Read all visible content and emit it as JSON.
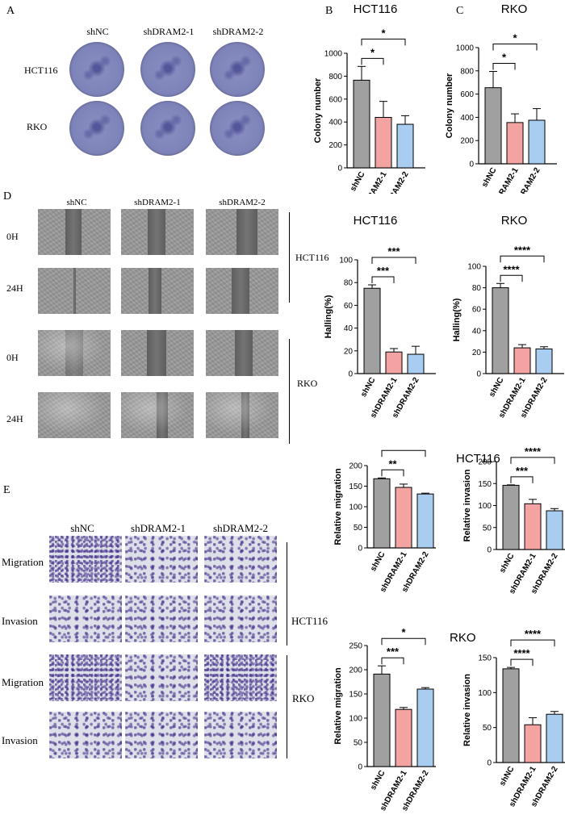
{
  "panels": {
    "A": "A",
    "B": "B",
    "C": "C",
    "D": "D",
    "E": "E"
  },
  "panel_a": {
    "columns": [
      "shNC",
      "shDRAM2-1",
      "shDRAM2-2"
    ],
    "rows": [
      "HCT116",
      "RKO"
    ]
  },
  "panel_d": {
    "columns": [
      "shNC",
      "shDRAM2-1",
      "shDRAM2-2"
    ],
    "rows": [
      "0H",
      "24H",
      "0H",
      "24H"
    ],
    "groups": [
      "HCT116",
      "RKO"
    ]
  },
  "panel_e": {
    "columns": [
      "shNC",
      "shDRAM2-1",
      "shDRAM2-2"
    ],
    "rows": [
      "Migration",
      "Invasion",
      "Migration",
      "Invasion"
    ],
    "groups": [
      "HCT116",
      "RKO"
    ]
  },
  "colors": {
    "shNC": "#a0a0a0",
    "shDRAM2-1": "#f4a3a3",
    "shDRAM2-2": "#a9cdf0"
  },
  "chart_data": [
    {
      "id": "B",
      "type": "bar",
      "title": "HCT116",
      "ylabel": "Colony number",
      "categories": [
        "shNC",
        "shDRAM2-1",
        "shDRAM2-2"
      ],
      "values": [
        765,
        440,
        380
      ],
      "errors": [
        120,
        140,
        75
      ],
      "ylim": [
        0,
        1000
      ],
      "ticks": [
        0,
        200,
        400,
        600,
        800,
        1000
      ],
      "sig": [
        {
          "from": 0,
          "to": 1,
          "label": "*"
        },
        {
          "from": 0,
          "to": 2,
          "label": "*"
        }
      ]
    },
    {
      "id": "C",
      "type": "bar",
      "title": "RKO",
      "ylabel": "Colony number",
      "categories": [
        "shNC",
        "shDRAM2-1",
        "shDRAM2-2"
      ],
      "values": [
        655,
        355,
        375
      ],
      "errors": [
        140,
        75,
        100
      ],
      "ylim": [
        0,
        1000
      ],
      "ticks": [
        0,
        200,
        400,
        600,
        800,
        1000
      ],
      "sig": [
        {
          "from": 0,
          "to": 1,
          "label": "*"
        },
        {
          "from": 0,
          "to": 2,
          "label": "*"
        }
      ]
    },
    {
      "id": "D1",
      "type": "bar",
      "title": "HCT116",
      "ylabel": "Halling(%)",
      "categories": [
        "shNC",
        "shDRAM2-1",
        "shDRAM2-2"
      ],
      "values": [
        75,
        19,
        17
      ],
      "errors": [
        3,
        3,
        7
      ],
      "ylim": [
        0,
        100
      ],
      "ticks": [
        0,
        20,
        40,
        60,
        80,
        100
      ],
      "sig": [
        {
          "from": 0,
          "to": 1,
          "label": "***"
        },
        {
          "from": 0,
          "to": 2,
          "label": "***"
        }
      ]
    },
    {
      "id": "D2",
      "type": "bar",
      "title": "RKO",
      "ylabel": "Halling(%)",
      "categories": [
        "shNC",
        "shDRAM2-1",
        "shDRAM2-2"
      ],
      "values": [
        80,
        24,
        23
      ],
      "errors": [
        4,
        3,
        2
      ],
      "ylim": [
        0,
        100
      ],
      "ticks": [
        0,
        20,
        40,
        60,
        80,
        100
      ],
      "sig": [
        {
          "from": 0,
          "to": 1,
          "label": "****"
        },
        {
          "from": 0,
          "to": 2,
          "label": "****"
        }
      ]
    },
    {
      "id": "E1",
      "type": "bar",
      "title": "",
      "ylabel": "Relative migration",
      "categories": [
        "shNC",
        "shDRAM2-1",
        "shDRAM2-2"
      ],
      "values": [
        168,
        147,
        131
      ],
      "errors": [
        2,
        8,
        2
      ],
      "ylim": [
        0,
        200
      ],
      "ticks": [
        0,
        50,
        100,
        150,
        200
      ],
      "sig": [
        {
          "from": 0,
          "to": 1,
          "label": "**"
        },
        {
          "from": 0,
          "to": 2,
          "label": "***"
        }
      ]
    },
    {
      "id": "E2",
      "type": "bar",
      "title": "HCT116",
      "ylabel": "Relative invasion",
      "categories": [
        "shNC",
        "shDRAM2-1",
        "shDRAM2-2"
      ],
      "values": [
        146,
        104,
        88
      ],
      "errors": [
        1,
        10,
        5
      ],
      "ylim": [
        0,
        200
      ],
      "ticks": [
        0,
        50,
        100,
        150,
        200
      ],
      "sig": [
        {
          "from": 0,
          "to": 1,
          "label": "***"
        },
        {
          "from": 0,
          "to": 2,
          "label": "****"
        }
      ]
    },
    {
      "id": "E3",
      "type": "bar",
      "title": "",
      "ylabel": "Relative migration",
      "categories": [
        "shNC",
        "shDRAM2-1",
        "shDRAM2-2"
      ],
      "values": [
        191,
        118,
        160
      ],
      "errors": [
        17,
        4,
        3
      ],
      "ylim": [
        0,
        250
      ],
      "ticks": [
        0,
        50,
        100,
        150,
        200,
        250
      ],
      "sig": [
        {
          "from": 0,
          "to": 1,
          "label": "***"
        },
        {
          "from": 0,
          "to": 2,
          "label": "*"
        }
      ]
    },
    {
      "id": "E4",
      "type": "bar",
      "title": "RKO",
      "ylabel": "Relative invasion",
      "categories": [
        "shNC",
        "shDRAM2-1",
        "shDRAM2-2"
      ],
      "values": [
        134,
        54,
        69
      ],
      "errors": [
        2,
        10,
        4
      ],
      "ylim": [
        0,
        150
      ],
      "ticks": [
        0,
        50,
        100,
        150
      ],
      "sig": [
        {
          "from": 0,
          "to": 1,
          "label": "****"
        },
        {
          "from": 0,
          "to": 2,
          "label": "****"
        }
      ]
    }
  ]
}
